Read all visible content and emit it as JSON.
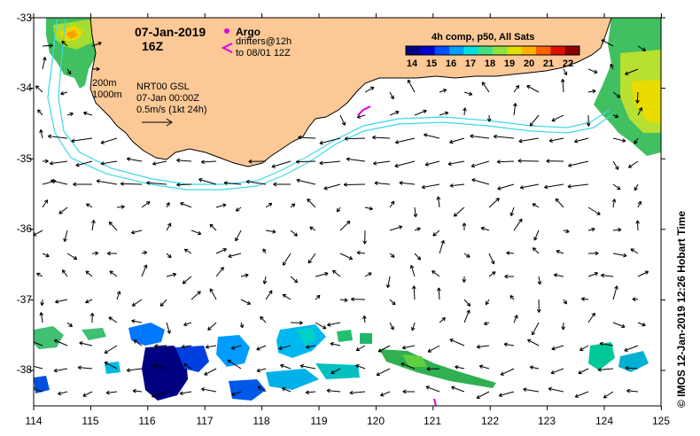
{
  "map": {
    "date_label": "07-Jan-2019",
    "hour_label": "16Z",
    "argo_label": "Argo",
    "drifters_line1": "drifters@12h",
    "drifters_line2": "to 08/01 12Z",
    "depth_200": "200m",
    "depth_1000": "1000m",
    "product_label": "NRT00 GSL",
    "product_time": "07-Jan 00:00Z",
    "scale_label": "0.5m/s (1kt 24h)",
    "credit": "© IMOS 12-Jan-2019 12:26 Hobart Time",
    "lon_ticks": [
      "114",
      "115",
      "116",
      "117",
      "118",
      "119",
      "120",
      "121",
      "122",
      "123",
      "124",
      "125"
    ],
    "lat_ticks": [
      "-33",
      "-34",
      "-35",
      "-36",
      "-37",
      "-38"
    ]
  },
  "colorbar": {
    "title": "4h comp, p50, All Sats",
    "ticks": [
      "14",
      "15",
      "16",
      "17",
      "18",
      "19",
      "20",
      "21",
      "22"
    ],
    "colors": [
      "#000080",
      "#0000cd",
      "#0050ff",
      "#00a0ff",
      "#00dfe0",
      "#40e080",
      "#90e040",
      "#e0e000",
      "#ffb000",
      "#ff6000",
      "#e01000",
      "#8b0000"
    ]
  },
  "colors": {
    "land": "#fcc896",
    "isobath": "#3fd8e8",
    "argo": "#e000e0"
  }
}
